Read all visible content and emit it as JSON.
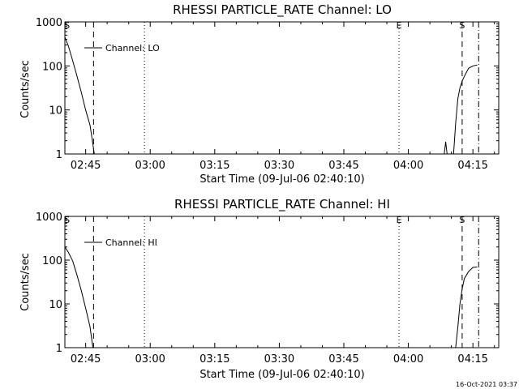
{
  "timestamp": "16-Oct-2021 03:37",
  "charts": [
    {
      "type": "line",
      "title": "RHESSI PARTICLE_RATE Channel: LO",
      "xlabel": "Start Time (09-Jul-06 02:40:10)",
      "ylabel": "Counts/sec",
      "legend": "Channel: LO",
      "legend_position": "top-left",
      "y_scale": "log",
      "ylim": [
        1,
        1000
      ],
      "yticks": [
        1,
        10,
        100,
        1000
      ],
      "ytick_labels": [
        "1",
        "10",
        "100",
        "1000"
      ],
      "xlim": [
        "02:40:10",
        "04:21:00"
      ],
      "xticks": [
        "02:45",
        "03:00",
        "03:15",
        "03:30",
        "03:45",
        "04:00",
        "04:15"
      ],
      "markers": [
        {
          "label": "S",
          "time": "02:40:40",
          "style": "none"
        },
        {
          "label": "",
          "time": "02:46:50",
          "style": "dashed"
        },
        {
          "label": "",
          "time": "02:58:40",
          "style": "dotted"
        },
        {
          "label": "E",
          "time": "03:57:50",
          "style": "dotted"
        },
        {
          "label": "S",
          "time": "04:12:30",
          "style": "dashed"
        },
        {
          "label": "",
          "time": "04:16:20",
          "style": "dashdot"
        }
      ],
      "series": [
        {
          "segments": [
            [
              [
                "02:40:10",
                450
              ],
              [
                "02:41:00",
                280
              ],
              [
                "02:42:00",
                130
              ],
              [
                "02:43:00",
                58
              ],
              [
                "02:44:00",
                25
              ],
              [
                "02:45:00",
                10
              ],
              [
                "02:46:00",
                4.5
              ],
              [
                "02:46:30",
                2.2
              ],
              [
                "02:47:00",
                1
              ]
            ],
            [
              [
                "04:08:20",
                1
              ],
              [
                "04:08:40",
                1.9
              ],
              [
                "04:09:00",
                1
              ]
            ],
            [
              [
                "04:10:30",
                1
              ],
              [
                "04:11:00",
                5
              ],
              [
                "04:11:30",
                18
              ],
              [
                "04:12:00",
                32
              ],
              [
                "04:12:30",
                45
              ],
              [
                "04:13:00",
                58
              ],
              [
                "04:13:30",
                72
              ],
              [
                "04:14:00",
                88
              ],
              [
                "04:15:00",
                100
              ],
              [
                "04:16:00",
                105
              ]
            ]
          ]
        }
      ]
    },
    {
      "type": "line",
      "title": "RHESSI PARTICLE_RATE Channel: HI",
      "xlabel": "Start Time (09-Jul-06 02:40:10)",
      "ylabel": "Counts/sec",
      "legend": "Channel: HI",
      "legend_position": "top-left",
      "y_scale": "log",
      "ylim": [
        1,
        1000
      ],
      "yticks": [
        1,
        10,
        100,
        1000
      ],
      "ytick_labels": [
        "1",
        "10",
        "100",
        "1000"
      ],
      "xlim": [
        "02:40:10",
        "04:21:00"
      ],
      "xticks": [
        "02:45",
        "03:00",
        "03:15",
        "03:30",
        "03:45",
        "04:00",
        "04:15"
      ],
      "markers": [
        {
          "label": "S",
          "time": "02:40:40",
          "style": "none"
        },
        {
          "label": "",
          "time": "02:46:50",
          "style": "dashed"
        },
        {
          "label": "",
          "time": "02:58:40",
          "style": "dotted"
        },
        {
          "label": "E",
          "time": "03:57:50",
          "style": "dotted"
        },
        {
          "label": "S",
          "time": "04:12:30",
          "style": "dashed"
        },
        {
          "label": "",
          "time": "04:16:20",
          "style": "dashdot"
        }
      ],
      "series": [
        {
          "segments": [
            [
              [
                "02:40:10",
                200
              ],
              [
                "02:41:00",
                150
              ],
              [
                "02:42:00",
                95
              ],
              [
                "02:43:00",
                45
              ],
              [
                "02:44:00",
                20
              ],
              [
                "02:45:00",
                8
              ],
              [
                "02:46:00",
                3
              ],
              [
                "02:46:40",
                1
              ]
            ],
            [
              [
                "04:11:00",
                1
              ],
              [
                "04:11:30",
                3
              ],
              [
                "04:12:00",
                10
              ],
              [
                "04:12:30",
                22
              ],
              [
                "04:13:00",
                38
              ],
              [
                "04:14:00",
                55
              ],
              [
                "04:15:00",
                68
              ],
              [
                "04:16:00",
                70
              ]
            ]
          ]
        }
      ]
    }
  ]
}
